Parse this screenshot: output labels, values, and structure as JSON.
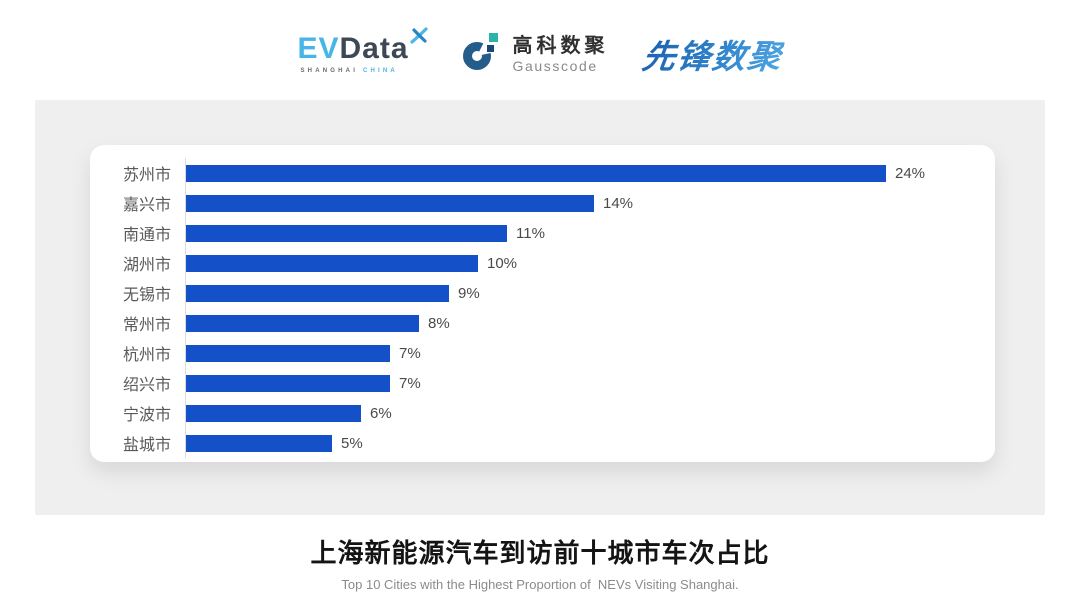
{
  "header": {
    "evdata": {
      "ev": "EV",
      "data": "Data",
      "tagline_left": "SHANGHAI",
      "tagline_right": "CHINA"
    },
    "gausscode": {
      "cn": "高科数聚",
      "en": "Gausscode"
    },
    "xianfeng": {
      "text": "先锋数聚"
    }
  },
  "chart_data": {
    "type": "bar",
    "orientation": "horizontal",
    "title": "上海新能源汽车到访前十城市车次占比",
    "subtitle": "Top 10 Cities with the Highest Proportion of  NEVs Visiting Shanghai.",
    "categories": [
      "苏州市",
      "嘉兴市",
      "南通市",
      "湖州市",
      "无锡市",
      "常州市",
      "杭州市",
      "绍兴市",
      "宁波市",
      "盐城市"
    ],
    "values": [
      24,
      14,
      11,
      10,
      9,
      8,
      7,
      7,
      6,
      5
    ],
    "labels": [
      "24%",
      "14%",
      "11%",
      "10%",
      "9%",
      "8%",
      "7%",
      "7%",
      "6%",
      "5%"
    ],
    "unit": "%",
    "xlim": [
      0,
      24
    ],
    "grid": false,
    "legend": false,
    "bar_color": "#1450c8"
  },
  "colors": {
    "bar": "#1450c8",
    "panel_gray": "#efefef",
    "evdata_cyan": "#45b6e6",
    "evdata_dark": "#3d4856",
    "gausscode_navy": "#245d8c",
    "gausscode_teal": "#2bb3a8",
    "xianfeng_blue": "#2878c8",
    "axis_line": "#dcdcdc",
    "label_text": "#595959"
  }
}
